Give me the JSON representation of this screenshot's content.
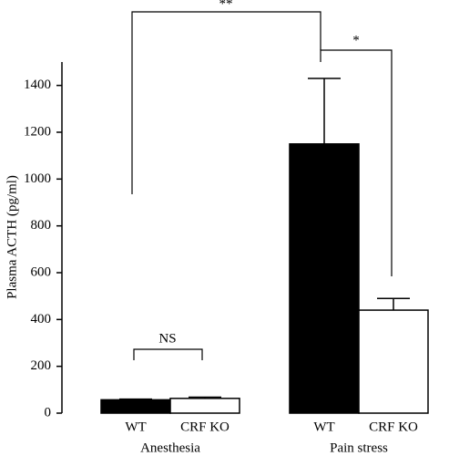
{
  "chart_data": {
    "type": "bar",
    "y_label": "Plasma ACTH (pg/ml)",
    "groups": [
      "Anesthesia",
      "Pain stress"
    ],
    "series": [
      {
        "name": "WT",
        "color": "#000000",
        "values": [
          57,
          1150
        ],
        "errors": [
          3,
          280
        ]
      },
      {
        "name": "CRF KO",
        "color": "#ffffff",
        "values": [
          63,
          440
        ],
        "errors": [
          5,
          50
        ]
      }
    ],
    "annotations": [
      "**",
      "*",
      "NS"
    ],
    "ylim": [
      0,
      1500
    ],
    "yticks": [
      0,
      200,
      400,
      600,
      800,
      1000,
      1200,
      1400
    ]
  }
}
